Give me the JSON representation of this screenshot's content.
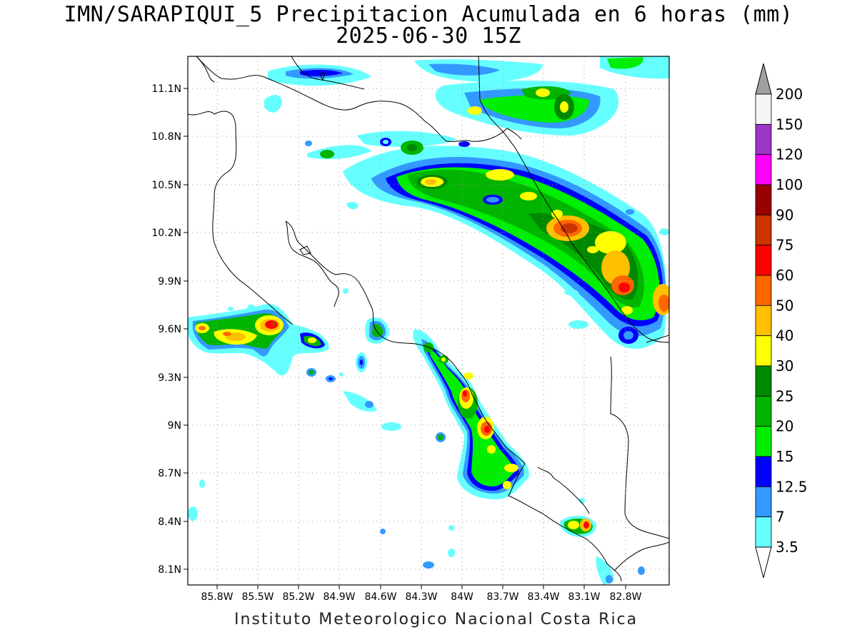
{
  "title_line1": "IMN/SARAPIQUI_5 Precipitacion Acumulada en 6 horas (mm)",
  "title_line2": "2025-06-30 15Z",
  "footer": "Instituto Meteorologico Nacional Costa Rica",
  "lat_labels": [
    "11.1N",
    "10.8N",
    "10.5N",
    "10.2N",
    "9.9N",
    "9.6N",
    "9.3N",
    "9N",
    "8.7N",
    "8.4N",
    "8.1N"
  ],
  "lon_labels": [
    "85.8W",
    "85.5W",
    "85.2W",
    "84.9W",
    "84.6W",
    "84.3W",
    "84W",
    "83.7W",
    "83.4W",
    "83.1W",
    "82.8W"
  ],
  "legend": {
    "labels": [
      "200",
      "150",
      "120",
      "100",
      "90",
      "75",
      "60",
      "50",
      "40",
      "30",
      "25",
      "20",
      "15",
      "12.5",
      "7",
      "3.5"
    ],
    "colors": [
      "#f4f4f4",
      "#9a36c8",
      "#ff00ff",
      "#990000",
      "#cc3300",
      "#ff0000",
      "#ff6600",
      "#ffc000",
      "#ffff00",
      "#008800",
      "#00b400",
      "#00ee00",
      "#0000ff",
      "#3399ff",
      "#66ffff"
    ],
    "top_arrow_color": "#a0a0a0",
    "bottom_arrow_color": "#ffffff"
  }
}
